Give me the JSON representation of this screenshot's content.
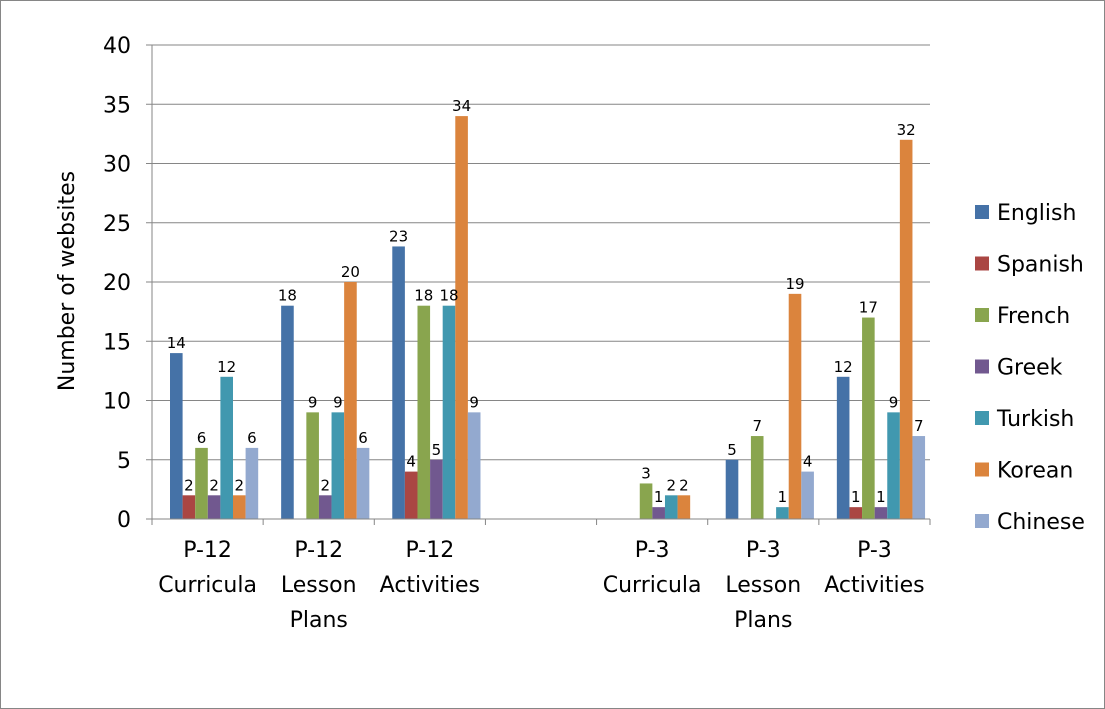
{
  "chart_data": {
    "type": "bar",
    "title": "",
    "xlabel": "",
    "ylabel": "Number of websites",
    "ylim": [
      0,
      40
    ],
    "yticks": [
      0,
      5,
      10,
      15,
      20,
      25,
      30,
      35,
      40
    ],
    "grid": true,
    "legend_position": "right",
    "categories": [
      [
        "P-12",
        "Curricula"
      ],
      [
        "P-12",
        "Lesson",
        "Plans"
      ],
      [
        "P-12",
        "Activities"
      ],
      [],
      [
        "P-3",
        "Curricula"
      ],
      [
        "P-3",
        "Lesson",
        "Plans"
      ],
      [
        "P-3",
        "Activities"
      ]
    ],
    "series": [
      {
        "name": "English",
        "color": "#4572A7",
        "values": [
          14,
          18,
          23,
          null,
          0,
          5,
          12
        ]
      },
      {
        "name": "Spanish",
        "color": "#AA4643",
        "values": [
          2,
          0,
          4,
          null,
          0,
          0,
          1
        ]
      },
      {
        "name": "French",
        "color": "#89A54E",
        "values": [
          6,
          9,
          18,
          null,
          3,
          7,
          17
        ]
      },
      {
        "name": "Greek",
        "color": "#71588F",
        "values": [
          2,
          2,
          5,
          null,
          1,
          0,
          1
        ]
      },
      {
        "name": "Turkish",
        "color": "#4198AF",
        "values": [
          12,
          9,
          18,
          null,
          2,
          1,
          9
        ]
      },
      {
        "name": "Korean",
        "color": "#DB843D",
        "values": [
          2,
          20,
          34,
          null,
          2,
          19,
          32
        ]
      },
      {
        "name": "Chinese",
        "color": "#93A9CF",
        "values": [
          6,
          6,
          9,
          null,
          0,
          4,
          7
        ]
      }
    ]
  }
}
